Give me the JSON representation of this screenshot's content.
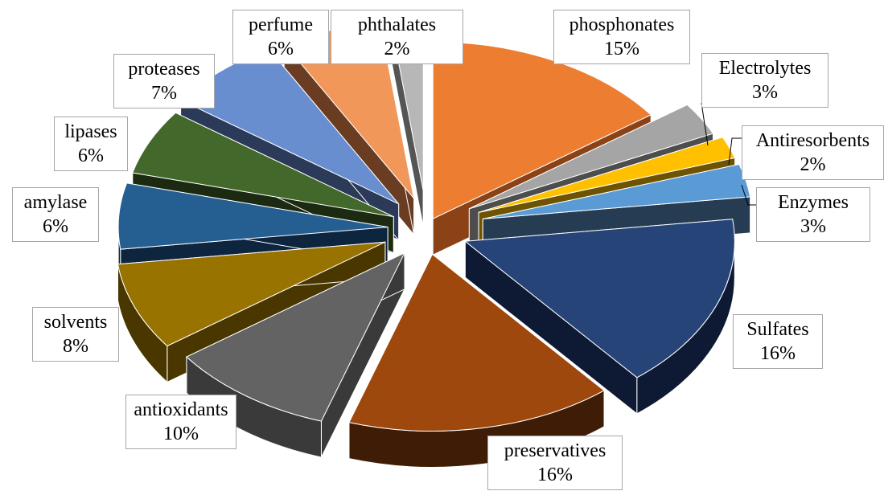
{
  "chart_data": {
    "type": "pie",
    "style": "3d-exploded",
    "title": "",
    "slices": [
      {
        "label": "phosphonates",
        "value": 15,
        "value_label": "15%",
        "color": "#ED7D31",
        "side_color": "#8A4216"
      },
      {
        "label": "Electrolytes",
        "value": 3,
        "value_label": "3%",
        "color": "#A5A5A5",
        "side_color": "#4D4D4D"
      },
      {
        "label": "Antiresorbents",
        "value": 2,
        "value_label": "2%",
        "color": "#FFC000",
        "side_color": "#6E5400"
      },
      {
        "label": "Enzymes",
        "value": 3,
        "value_label": "3%",
        "color": "#5B9BD5",
        "side_color": "#253C52"
      },
      {
        "label": "Sulfates",
        "value": 16,
        "value_label": "16%",
        "color": "#264478",
        "side_color": "#0E1A33"
      },
      {
        "label": "preservatives",
        "value": 16,
        "value_label": "16%",
        "color": "#9E480E",
        "side_color": "#3F1C05"
      },
      {
        "label": "antioxidants",
        "value": 10,
        "value_label": "10%",
        "color": "#636363",
        "side_color": "#3A3A3A"
      },
      {
        "label": "solvents",
        "value": 8,
        "value_label": "8%",
        "color": "#997300",
        "side_color": "#4A3700"
      },
      {
        "label": "amylase",
        "value": 6,
        "value_label": "6%",
        "color": "#255E91",
        "side_color": "#0E2540"
      },
      {
        "label": "lipases",
        "value": 6,
        "value_label": "6%",
        "color": "#43682B",
        "side_color": "#1B2A11"
      },
      {
        "label": "proteases",
        "value": 7,
        "value_label": "7%",
        "color": "#698ED0",
        "side_color": "#2A3A58"
      },
      {
        "label": "perfume",
        "value": 6,
        "value_label": "6%",
        "color": "#F1975A",
        "side_color": "#6A3C22"
      },
      {
        "label": "phthalates",
        "value": 2,
        "value_label": "2%",
        "color": "#B7B7B7",
        "side_color": "#555555"
      }
    ]
  }
}
